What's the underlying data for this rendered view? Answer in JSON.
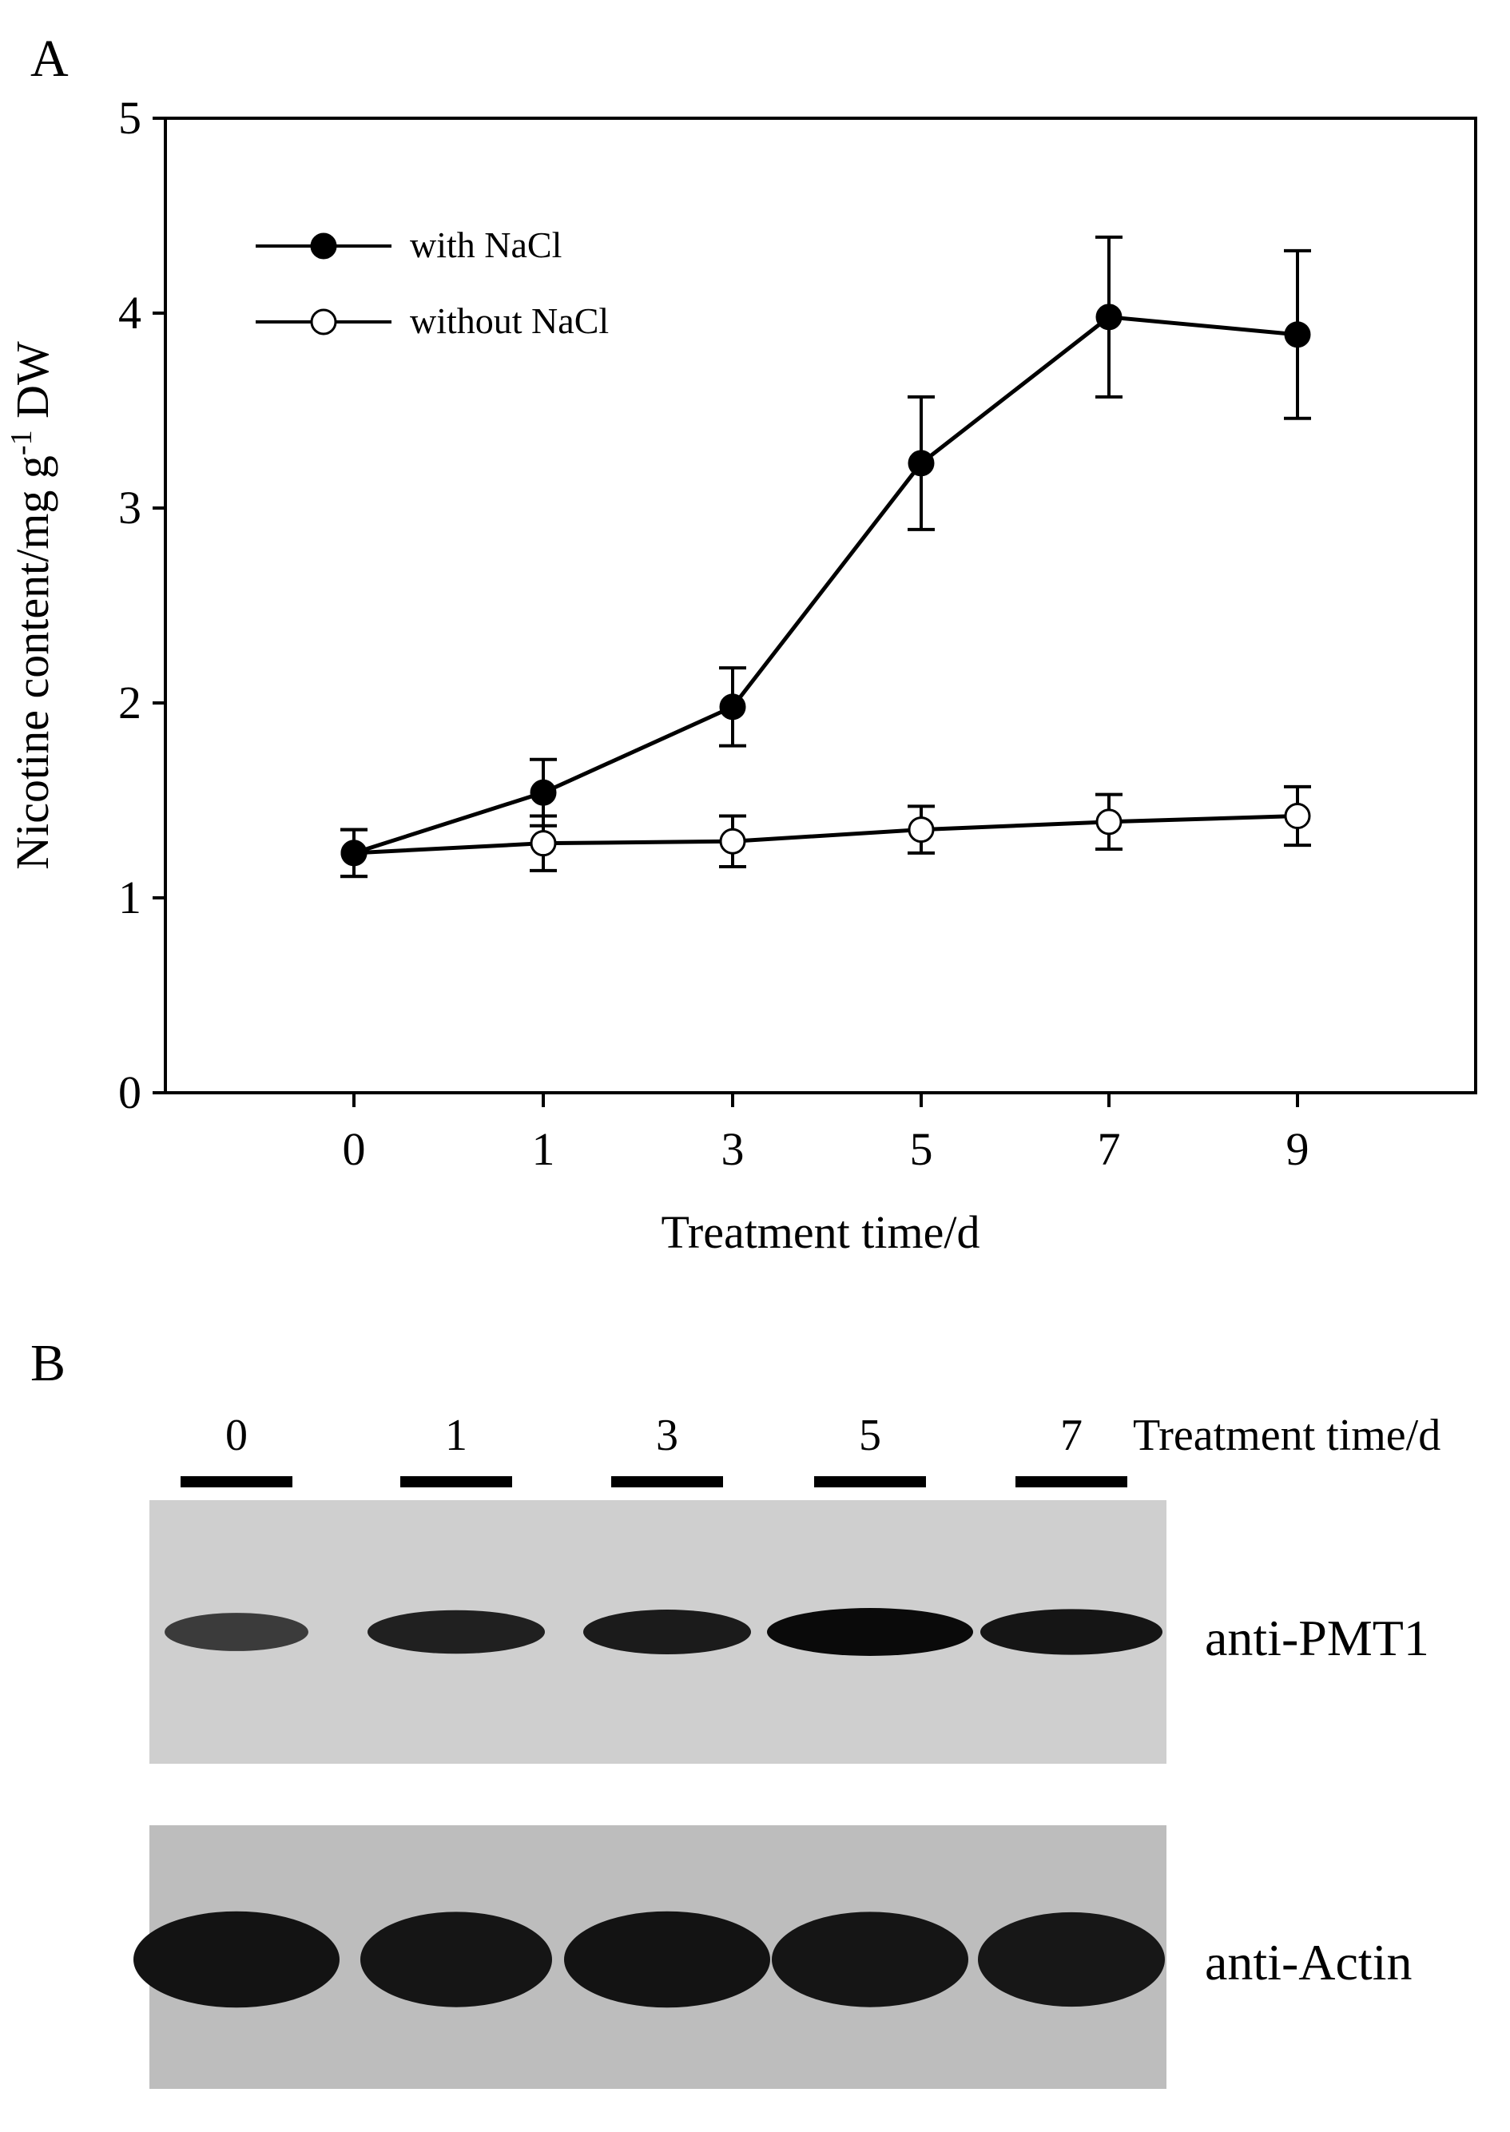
{
  "panel_a": {
    "label": "A"
  },
  "panel_b": {
    "label": "B",
    "lanes": [
      "0",
      "1",
      "3",
      "5",
      "7"
    ],
    "header_label": "Treatment time/d",
    "blots": [
      {
        "label": "anti-PMT1",
        "band_intensity": [
          0.55,
          0.8,
          0.85,
          1.0,
          0.9
        ]
      },
      {
        "label": "anti-Actin",
        "band_intensity": [
          0.92,
          0.9,
          0.92,
          0.9,
          0.88
        ]
      }
    ]
  },
  "chart_data": {
    "type": "line",
    "xlabel": "Treatment time/d",
    "ylabel_main": "Nicotine content/mg g",
    "ylabel_sup": "-1",
    "ylabel_unit": " DW",
    "categories": [
      "0",
      "1",
      "3",
      "5",
      "7",
      "9"
    ],
    "ylim": [
      0,
      5
    ],
    "yticks": [
      "0",
      "1",
      "2",
      "3",
      "4",
      "5"
    ],
    "legend_position": "top-left",
    "series": [
      {
        "name": "with NaCl",
        "marker": "filled-circle",
        "color": "#000000",
        "values": [
          1.23,
          1.54,
          1.98,
          3.23,
          3.98,
          3.89
        ],
        "errors": [
          0.12,
          0.17,
          0.2,
          0.34,
          0.41,
          0.43
        ]
      },
      {
        "name": "without NaCl",
        "marker": "open-circle",
        "color": "#000000",
        "values": [
          1.23,
          1.28,
          1.29,
          1.35,
          1.39,
          1.42
        ],
        "errors": [
          0.12,
          0.14,
          0.13,
          0.12,
          0.14,
          0.15
        ]
      }
    ]
  }
}
